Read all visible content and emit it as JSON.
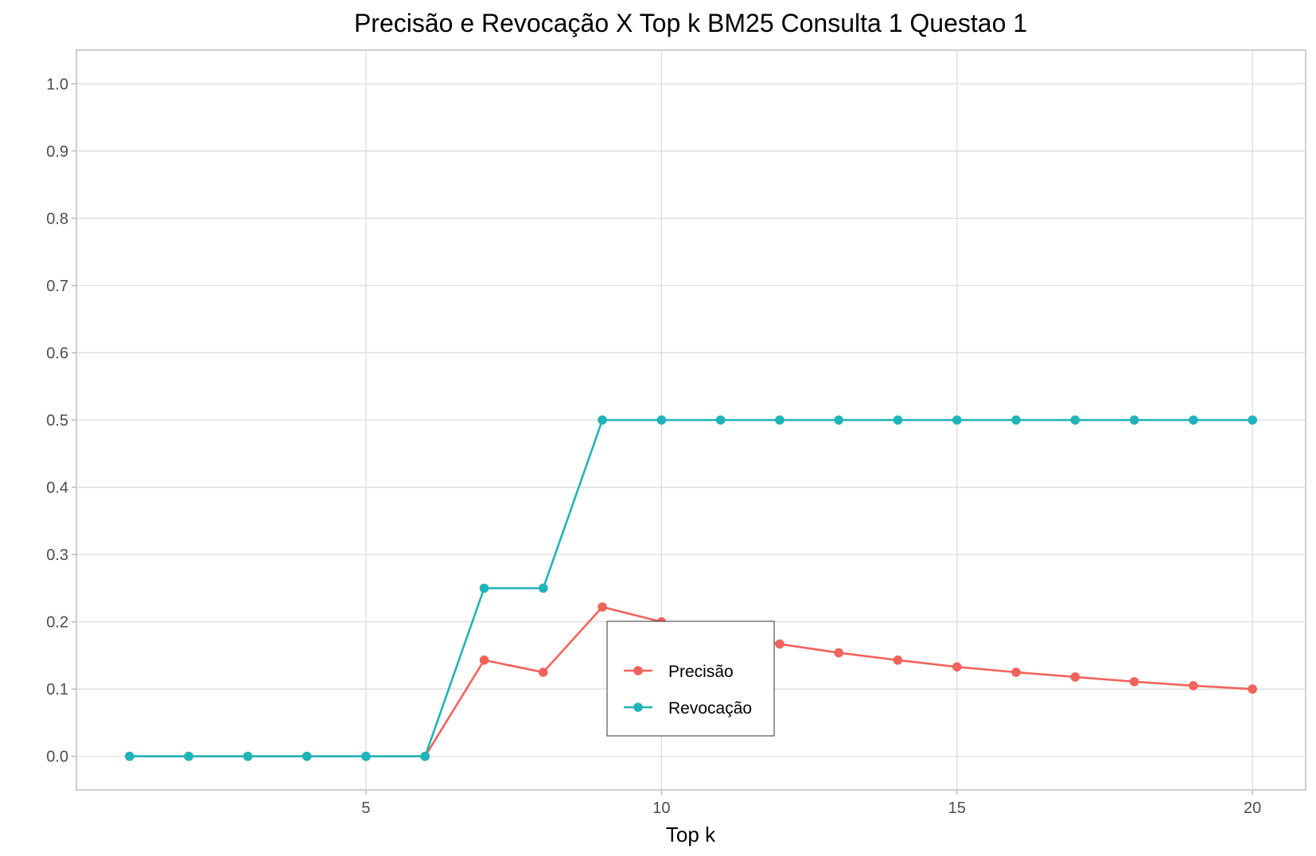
{
  "chart_data": {
    "type": "line",
    "title": "Precisão e Revocação X Top k BM25 Consulta 1 Questao 1",
    "xlabel": "Top k",
    "ylabel": "",
    "x": [
      1,
      2,
      3,
      4,
      5,
      6,
      7,
      8,
      9,
      10,
      11,
      12,
      13,
      14,
      15,
      16,
      17,
      18,
      19,
      20
    ],
    "xlim": [
      0.1,
      20.9
    ],
    "ylim": [
      -0.05,
      1.05
    ],
    "x_ticks": [
      5,
      10,
      15,
      20
    ],
    "y_ticks": [
      0.0,
      0.1,
      0.2,
      0.3,
      0.4,
      0.5,
      0.6,
      0.7,
      0.8,
      0.9,
      1.0
    ],
    "x_tick_labels": [
      "5",
      "10",
      "15",
      "20"
    ],
    "y_tick_labels": [
      "0.0",
      "0.1",
      "0.2",
      "0.3",
      "0.4",
      "0.5",
      "0.6",
      "0.7",
      "0.8",
      "0.9",
      "1.0"
    ],
    "grid": true,
    "legend_position": "center-bottom",
    "series": [
      {
        "name": "Precisão",
        "color": "#f0635c",
        "values": [
          0,
          0,
          0,
          0,
          0,
          0,
          0.143,
          0.125,
          0.222,
          0.2,
          0.182,
          0.167,
          0.154,
          0.143,
          0.133,
          0.125,
          0.118,
          0.111,
          0.105,
          0.1
        ]
      },
      {
        "name": "Revocação",
        "color": "#1fb4b9",
        "values": [
          0,
          0,
          0,
          0,
          0,
          0,
          0.25,
          0.25,
          0.5,
          0.5,
          0.5,
          0.5,
          0.5,
          0.5,
          0.5,
          0.5,
          0.5,
          0.5,
          0.5,
          0.5
        ]
      }
    ]
  }
}
